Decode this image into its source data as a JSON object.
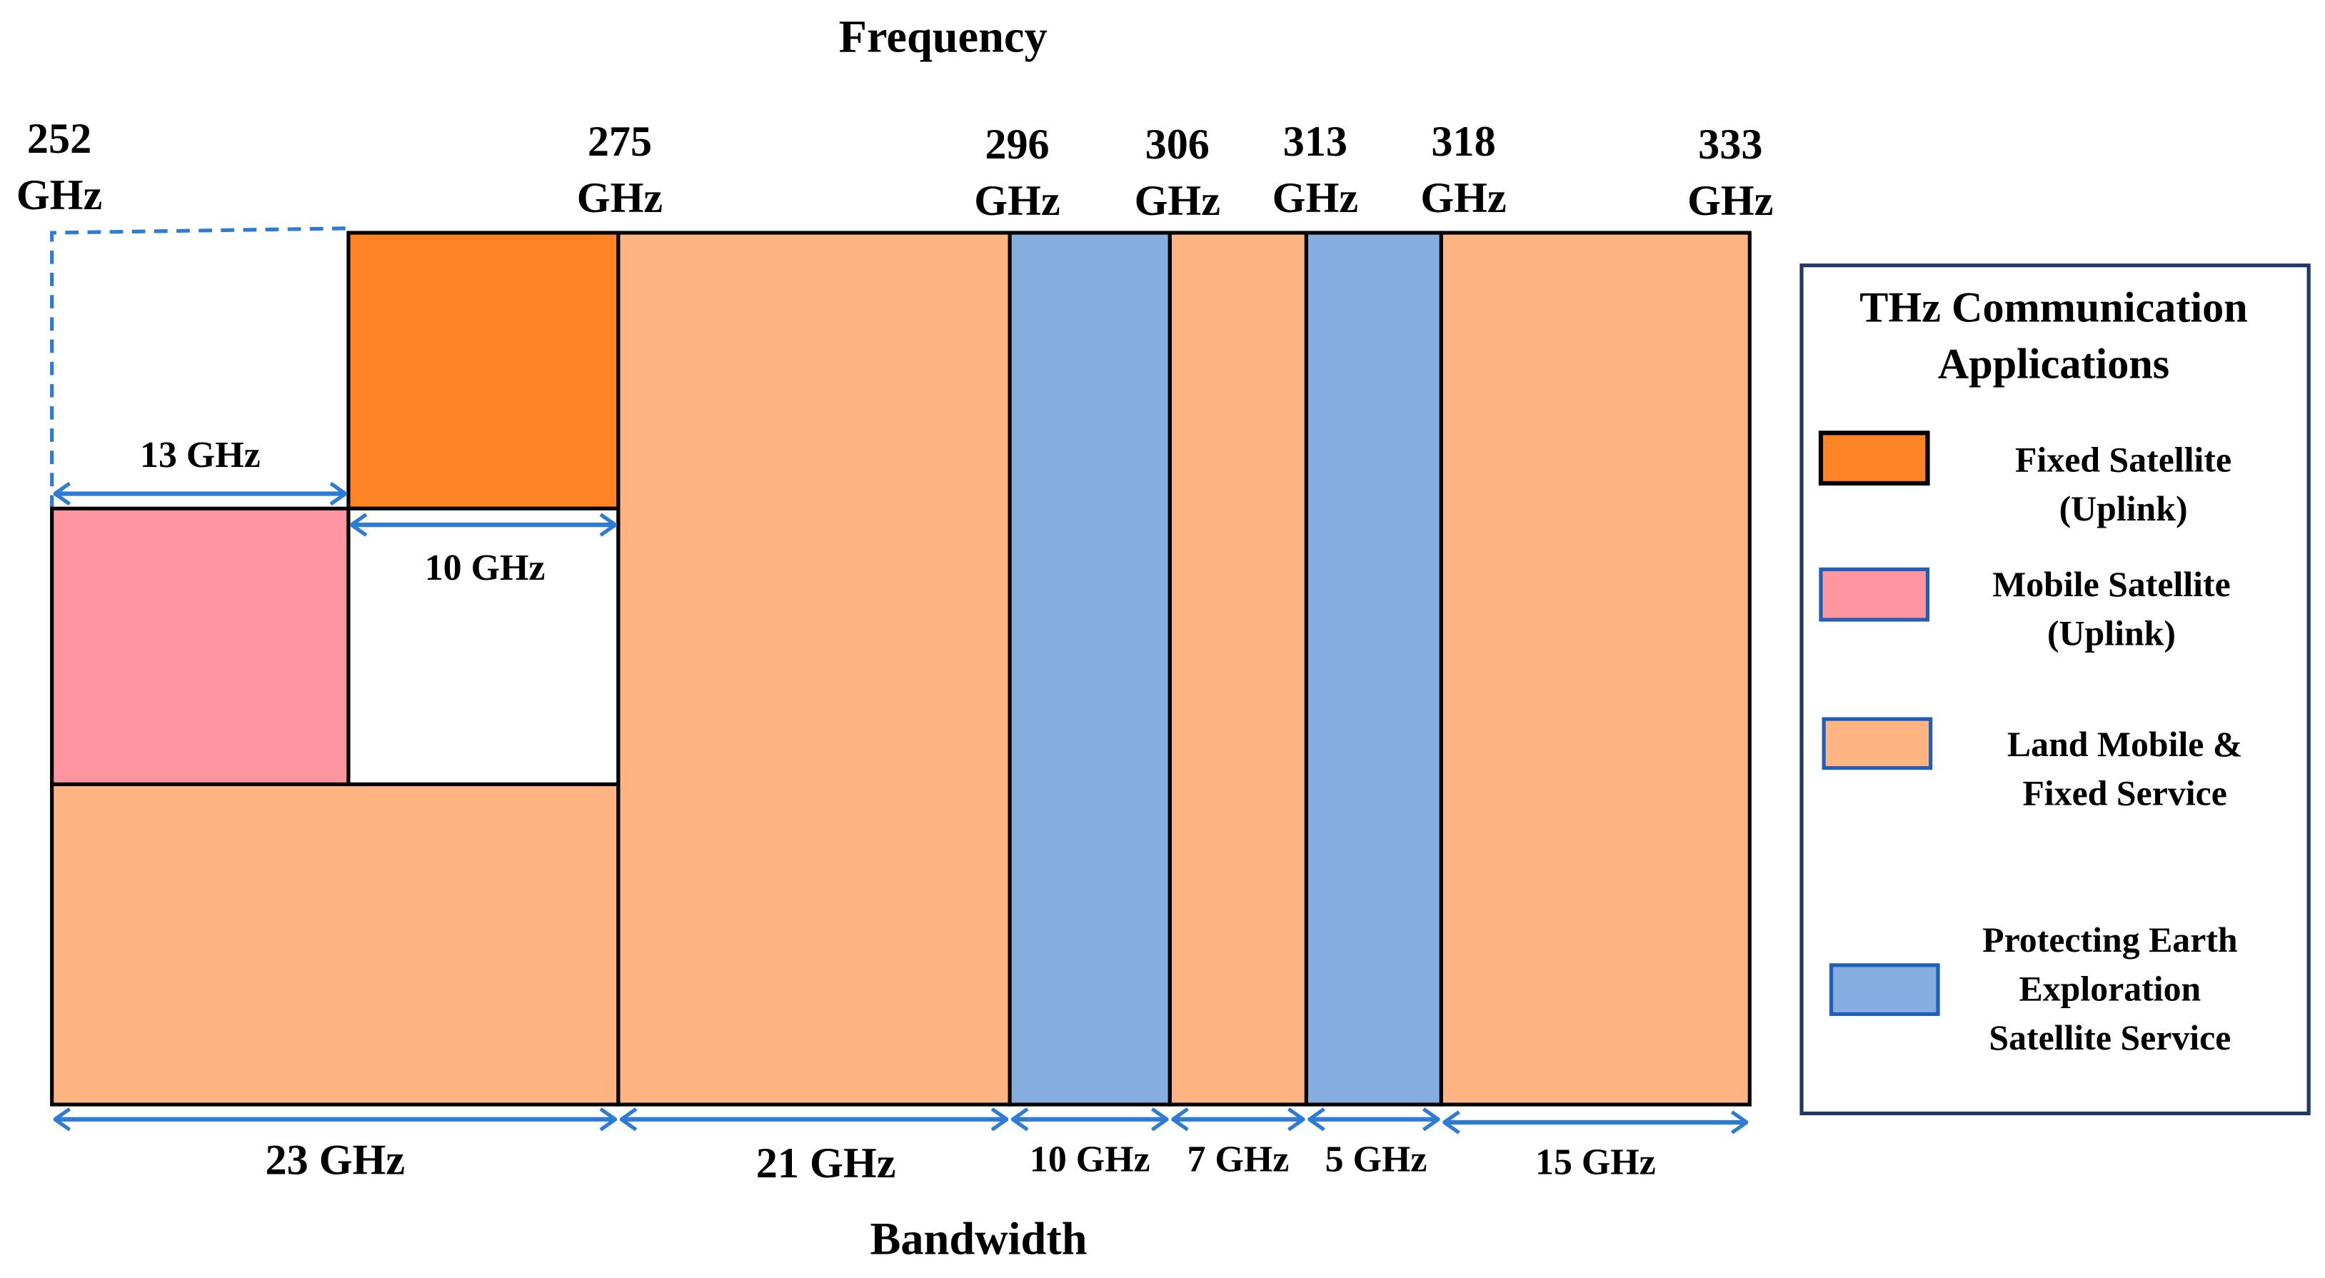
{
  "title_top": "Frequency",
  "title_bottom": "Bandwidth",
  "frequency_marks": [
    {
      "value": "252",
      "unit": "GHz"
    },
    {
      "value": "275",
      "unit": "GHz"
    },
    {
      "value": "296",
      "unit": "GHz"
    },
    {
      "value": "306",
      "unit": "GHz"
    },
    {
      "value": "313",
      "unit": "GHz"
    },
    {
      "value": "318",
      "unit": "GHz"
    },
    {
      "value": "333",
      "unit": "GHz"
    }
  ],
  "bandwidths": [
    "23 GHz",
    "21 GHz",
    "10 GHz",
    "7 GHz",
    "5 GHz",
    "15 GHz"
  ],
  "inner_bandwidths": {
    "mobile_satellite": "13 GHz",
    "fixed_satellite": "10 GHz"
  },
  "colors": {
    "fixed_satellite": "#FF8426",
    "mobile_satellite": "#FF95A0",
    "land_mobile_fixed": "#FFB482",
    "earth_exploration": "#86ADE0",
    "arrow": "#2E7BD6",
    "legend_border": "#1F3864",
    "swatch_border_blue": "#1F5FB8"
  },
  "legend": {
    "title_lines": [
      "THz Communication",
      "Applications"
    ],
    "items": [
      {
        "lines": [
          "Fixed Satellite",
          "(Uplink)"
        ],
        "color_key": "fixed_satellite"
      },
      {
        "lines": [
          "Mobile Satellite",
          "(Uplink)"
        ],
        "color_key": "mobile_satellite"
      },
      {
        "lines": [
          "Land Mobile &",
          "Fixed Service"
        ],
        "color_key": "land_mobile_fixed"
      },
      {
        "lines": [
          "Protecting Earth",
          "Exploration",
          "Satellite Service"
        ],
        "color_key": "earth_exploration"
      }
    ]
  }
}
